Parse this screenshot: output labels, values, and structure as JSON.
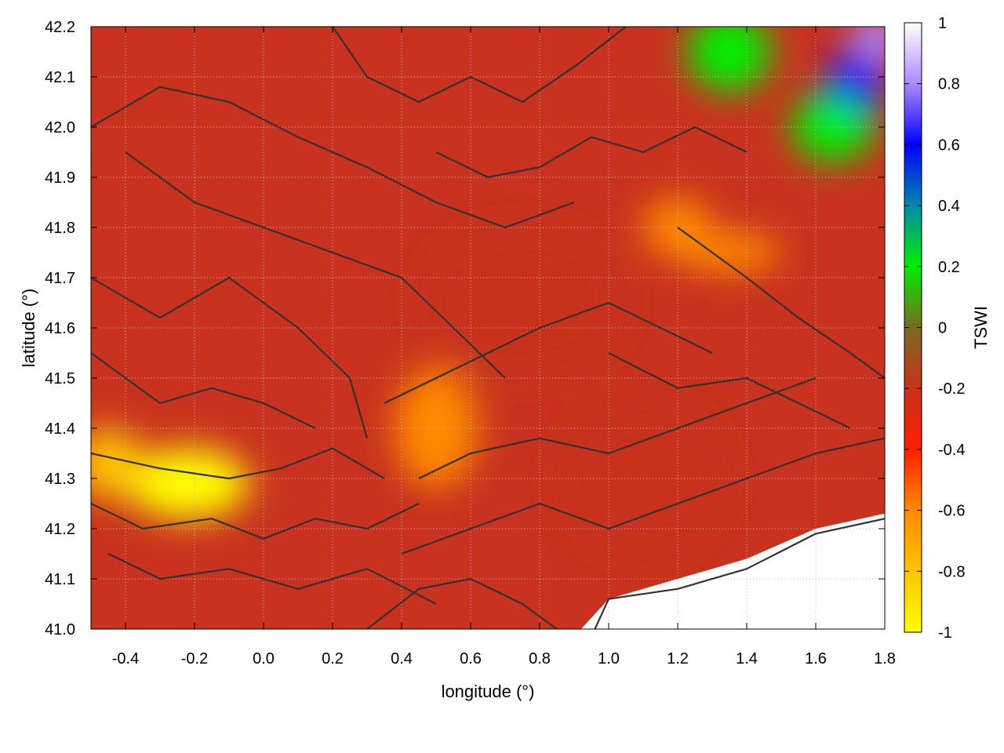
{
  "chart_data": {
    "type": "heatmap",
    "xlabel": "longitude (°)",
    "ylabel": "latitude (°)",
    "colorbar_label": "TSWI",
    "xlim": [
      -0.5,
      1.8
    ],
    "ylim": [
      41.0,
      42.2
    ],
    "clim": [
      -1,
      1
    ],
    "x_ticks": [
      -0.4,
      -0.2,
      0.0,
      0.2,
      0.4,
      0.6,
      0.8,
      1.0,
      1.2,
      1.4,
      1.6,
      1.8
    ],
    "x_tick_labels": [
      "-0.4",
      "-0.2",
      "0.0",
      "0.2",
      "0.4",
      "0.6",
      "0.8",
      "1.0",
      "1.2",
      "1.4",
      "1.6",
      "1.8"
    ],
    "y_ticks": [
      41.0,
      41.1,
      41.2,
      41.3,
      41.4,
      41.5,
      41.6,
      41.7,
      41.8,
      41.9,
      42.0,
      42.1,
      42.2
    ],
    "y_tick_labels": [
      "41.0",
      "41.1",
      "41.2",
      "41.3",
      "41.4",
      "41.5",
      "41.6",
      "41.7",
      "41.8",
      "41.9",
      "42.0",
      "42.1",
      "42.2"
    ],
    "colorbar_ticks": [
      1,
      0.8,
      0.6,
      0.4,
      0.2,
      0,
      -0.2,
      -0.4,
      -0.6,
      -0.8,
      -1
    ],
    "colorbar_tick_labels": [
      "1",
      "0.8",
      "0.6",
      "0.4",
      "0.2",
      "0",
      "-0.2",
      "-0.4",
      "-0.6",
      "-0.8",
      "-1"
    ],
    "grid": true,
    "colormap": [
      {
        "value": -1.0,
        "color": "#ffff00"
      },
      {
        "value": -0.8,
        "color": "#ffc400"
      },
      {
        "value": -0.6,
        "color": "#ff8a00"
      },
      {
        "value": -0.4,
        "color": "#ff1e00"
      },
      {
        "value": -0.2,
        "color": "#c8321e"
      },
      {
        "value": 0.0,
        "color": "#7a6a20"
      },
      {
        "value": 0.2,
        "color": "#00f000"
      },
      {
        "value": 0.4,
        "color": "#0088aa"
      },
      {
        "value": 0.6,
        "color": "#0000ff"
      },
      {
        "value": 0.8,
        "color": "#b088ff"
      },
      {
        "value": 1.0,
        "color": "#ffffff"
      }
    ],
    "background_value": -0.3,
    "features": [
      {
        "name": "yellow-dry-patch",
        "lon": -0.22,
        "lat": 41.29,
        "r_lon": 0.18,
        "r_lat": 0.07,
        "value": -0.95
      },
      {
        "name": "yellow-dry-patch-west",
        "lon": -0.45,
        "lat": 41.33,
        "r_lon": 0.1,
        "r_lat": 0.07,
        "value": -0.85
      },
      {
        "name": "orange-band-central",
        "lon": 0.5,
        "lat": 41.4,
        "r_lon": 0.12,
        "r_lat": 0.12,
        "value": -0.6
      },
      {
        "name": "orange-band-northeast",
        "lon": 1.2,
        "lat": 41.8,
        "r_lon": 0.1,
        "r_lat": 0.06,
        "value": -0.55
      },
      {
        "name": "orange-band-east",
        "lon": 1.35,
        "lat": 41.75,
        "r_lon": 0.15,
        "r_lat": 0.04,
        "value": -0.5
      },
      {
        "name": "dark-region-center",
        "lon": 0.75,
        "lat": 41.65,
        "r_lon": 0.3,
        "r_lat": 0.15,
        "value": -0.15
      },
      {
        "name": "dark-region-southeast",
        "lon": 1.1,
        "lat": 41.3,
        "r_lon": 0.25,
        "r_lat": 0.15,
        "value": -0.18
      },
      {
        "name": "green-northeast",
        "lon": 1.35,
        "lat": 42.15,
        "r_lon": 0.12,
        "r_lat": 0.08,
        "value": 0.2
      },
      {
        "name": "green-east",
        "lon": 1.65,
        "lat": 42.0,
        "r_lon": 0.12,
        "r_lat": 0.07,
        "value": 0.22
      },
      {
        "name": "blue-northeast",
        "lon": 1.72,
        "lat": 42.1,
        "r_lon": 0.08,
        "r_lat": 0.06,
        "value": 0.6
      },
      {
        "name": "purple-corner",
        "lon": 1.78,
        "lat": 42.18,
        "r_lon": 0.07,
        "r_lat": 0.05,
        "value": 0.85
      }
    ],
    "missing_region_southeast": [
      [
        0.92,
        41.0
      ],
      [
        1.0,
        41.06
      ],
      [
        1.2,
        41.1
      ],
      [
        1.4,
        41.14
      ],
      [
        1.6,
        41.2
      ],
      [
        1.8,
        41.23
      ],
      [
        1.8,
        41.0
      ]
    ],
    "contour_lines": [
      [
        [
          -0.5,
          41.35
        ],
        [
          -0.3,
          41.32
        ],
        [
          -0.1,
          41.3
        ],
        [
          0.05,
          41.32
        ],
        [
          0.2,
          41.36
        ],
        [
          0.35,
          41.3
        ]
      ],
      [
        [
          -0.5,
          41.25
        ],
        [
          -0.35,
          41.2
        ],
        [
          -0.15,
          41.22
        ],
        [
          0.0,
          41.18
        ],
        [
          0.15,
          41.22
        ],
        [
          0.3,
          41.2
        ],
        [
          0.45,
          41.25
        ]
      ],
      [
        [
          -0.45,
          41.15
        ],
        [
          -0.3,
          41.1
        ],
        [
          -0.1,
          41.12
        ],
        [
          0.1,
          41.08
        ],
        [
          0.3,
          41.12
        ],
        [
          0.5,
          41.05
        ]
      ],
      [
        [
          -0.5,
          41.55
        ],
        [
          -0.3,
          41.45
        ],
        [
          -0.15,
          41.48
        ],
        [
          0.0,
          41.45
        ],
        [
          0.15,
          41.4
        ]
      ],
      [
        [
          -0.5,
          41.7
        ],
        [
          -0.3,
          41.62
        ],
        [
          -0.1,
          41.7
        ],
        [
          0.1,
          41.6
        ],
        [
          0.25,
          41.5
        ],
        [
          0.3,
          41.38
        ]
      ],
      [
        [
          -0.4,
          41.95
        ],
        [
          -0.2,
          41.85
        ],
        [
          0.0,
          41.8
        ],
        [
          0.2,
          41.75
        ],
        [
          0.4,
          41.7
        ],
        [
          0.55,
          41.6
        ],
        [
          0.7,
          41.5
        ]
      ],
      [
        [
          -0.5,
          42.0
        ],
        [
          -0.3,
          42.08
        ],
        [
          -0.1,
          42.05
        ],
        [
          0.1,
          41.98
        ],
        [
          0.3,
          41.92
        ],
        [
          0.5,
          41.85
        ],
        [
          0.7,
          41.8
        ],
        [
          0.9,
          41.85
        ]
      ],
      [
        [
          0.2,
          42.2
        ],
        [
          0.3,
          42.1
        ],
        [
          0.45,
          42.05
        ],
        [
          0.6,
          42.1
        ],
        [
          0.75,
          42.05
        ],
        [
          0.9,
          42.12
        ],
        [
          1.05,
          42.2
        ]
      ],
      [
        [
          0.5,
          41.95
        ],
        [
          0.65,
          41.9
        ],
        [
          0.8,
          41.92
        ],
        [
          0.95,
          41.98
        ],
        [
          1.1,
          41.95
        ],
        [
          1.25,
          42.0
        ],
        [
          1.4,
          41.95
        ]
      ],
      [
        [
          0.35,
          41.45
        ],
        [
          0.5,
          41.5
        ],
        [
          0.65,
          41.55
        ],
        [
          0.8,
          41.6
        ],
        [
          1.0,
          41.65
        ],
        [
          1.15,
          41.6
        ],
        [
          1.3,
          41.55
        ]
      ],
      [
        [
          0.45,
          41.3
        ],
        [
          0.6,
          41.35
        ],
        [
          0.8,
          41.38
        ],
        [
          1.0,
          41.35
        ],
        [
          1.2,
          41.4
        ],
        [
          1.4,
          41.45
        ],
        [
          1.6,
          41.5
        ]
      ],
      [
        [
          0.4,
          41.15
        ],
        [
          0.6,
          41.2
        ],
        [
          0.8,
          41.25
        ],
        [
          1.0,
          41.2
        ],
        [
          1.2,
          41.25
        ],
        [
          1.4,
          41.3
        ],
        [
          1.6,
          41.35
        ],
        [
          1.8,
          41.38
        ]
      ],
      [
        [
          0.3,
          41.0
        ],
        [
          0.45,
          41.08
        ],
        [
          0.6,
          41.1
        ],
        [
          0.75,
          41.05
        ],
        [
          0.85,
          41.0
        ]
      ],
      [
        [
          1.2,
          41.8
        ],
        [
          1.4,
          41.7
        ],
        [
          1.55,
          41.62
        ],
        [
          1.7,
          41.55
        ],
        [
          1.8,
          41.5
        ]
      ],
      [
        [
          1.0,
          41.55
        ],
        [
          1.2,
          41.48
        ],
        [
          1.4,
          41.5
        ],
        [
          1.55,
          41.45
        ],
        [
          1.7,
          41.4
        ]
      ],
      [
        [
          0.96,
          41.0
        ],
        [
          1.0,
          41.06
        ],
        [
          1.2,
          41.08
        ],
        [
          1.4,
          41.12
        ],
        [
          1.6,
          41.19
        ],
        [
          1.8,
          41.22
        ]
      ]
    ]
  }
}
